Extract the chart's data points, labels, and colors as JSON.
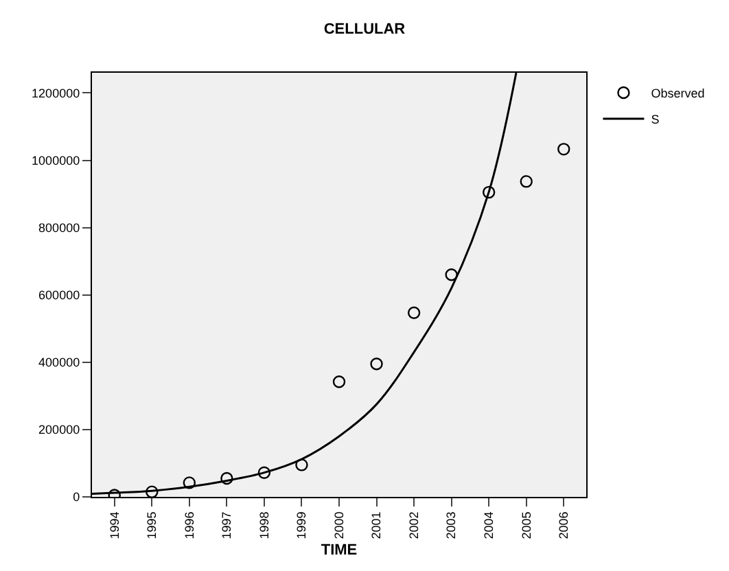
{
  "chart_data": {
    "type": "scatter",
    "title": "CELLULAR",
    "xlabel": "TIME",
    "x": [
      1994,
      1995,
      1996,
      1997,
      1998,
      1999,
      2000,
      2001,
      2002,
      2003,
      2004,
      2005,
      2006
    ],
    "series": [
      {
        "name": "Observed",
        "marker": "circle",
        "color": "#000000",
        "values": [
          5000,
          15000,
          42000,
          55000,
          72000,
          95000,
          342000,
          395000,
          547000,
          660000,
          905000,
          937000,
          1033000
        ]
      },
      {
        "name": "S",
        "type": "line",
        "marker": "none",
        "line_style": "solid",
        "color": "#000000",
        "x": [
          1993.4,
          1994,
          1995,
          1996,
          1997,
          1998,
          1999,
          2000,
          2001,
          2002,
          2003,
          2004,
          2004.73
        ],
        "values": [
          9000,
          12000,
          18000,
          30000,
          48000,
          72000,
          112000,
          180000,
          275000,
          430000,
          620000,
          906000,
          1260000
        ]
      }
    ],
    "xlim": [
      1993.4,
      2006.6
    ],
    "xticks": [
      1994,
      1995,
      1996,
      1997,
      1998,
      1999,
      2000,
      2001,
      2002,
      2003,
      2004,
      2005,
      2006
    ],
    "ylim": [
      0,
      1260000
    ],
    "yticks": [
      0,
      200000,
      400000,
      600000,
      800000,
      1000000,
      1200000
    ],
    "grid": false,
    "legend": "top right"
  }
}
